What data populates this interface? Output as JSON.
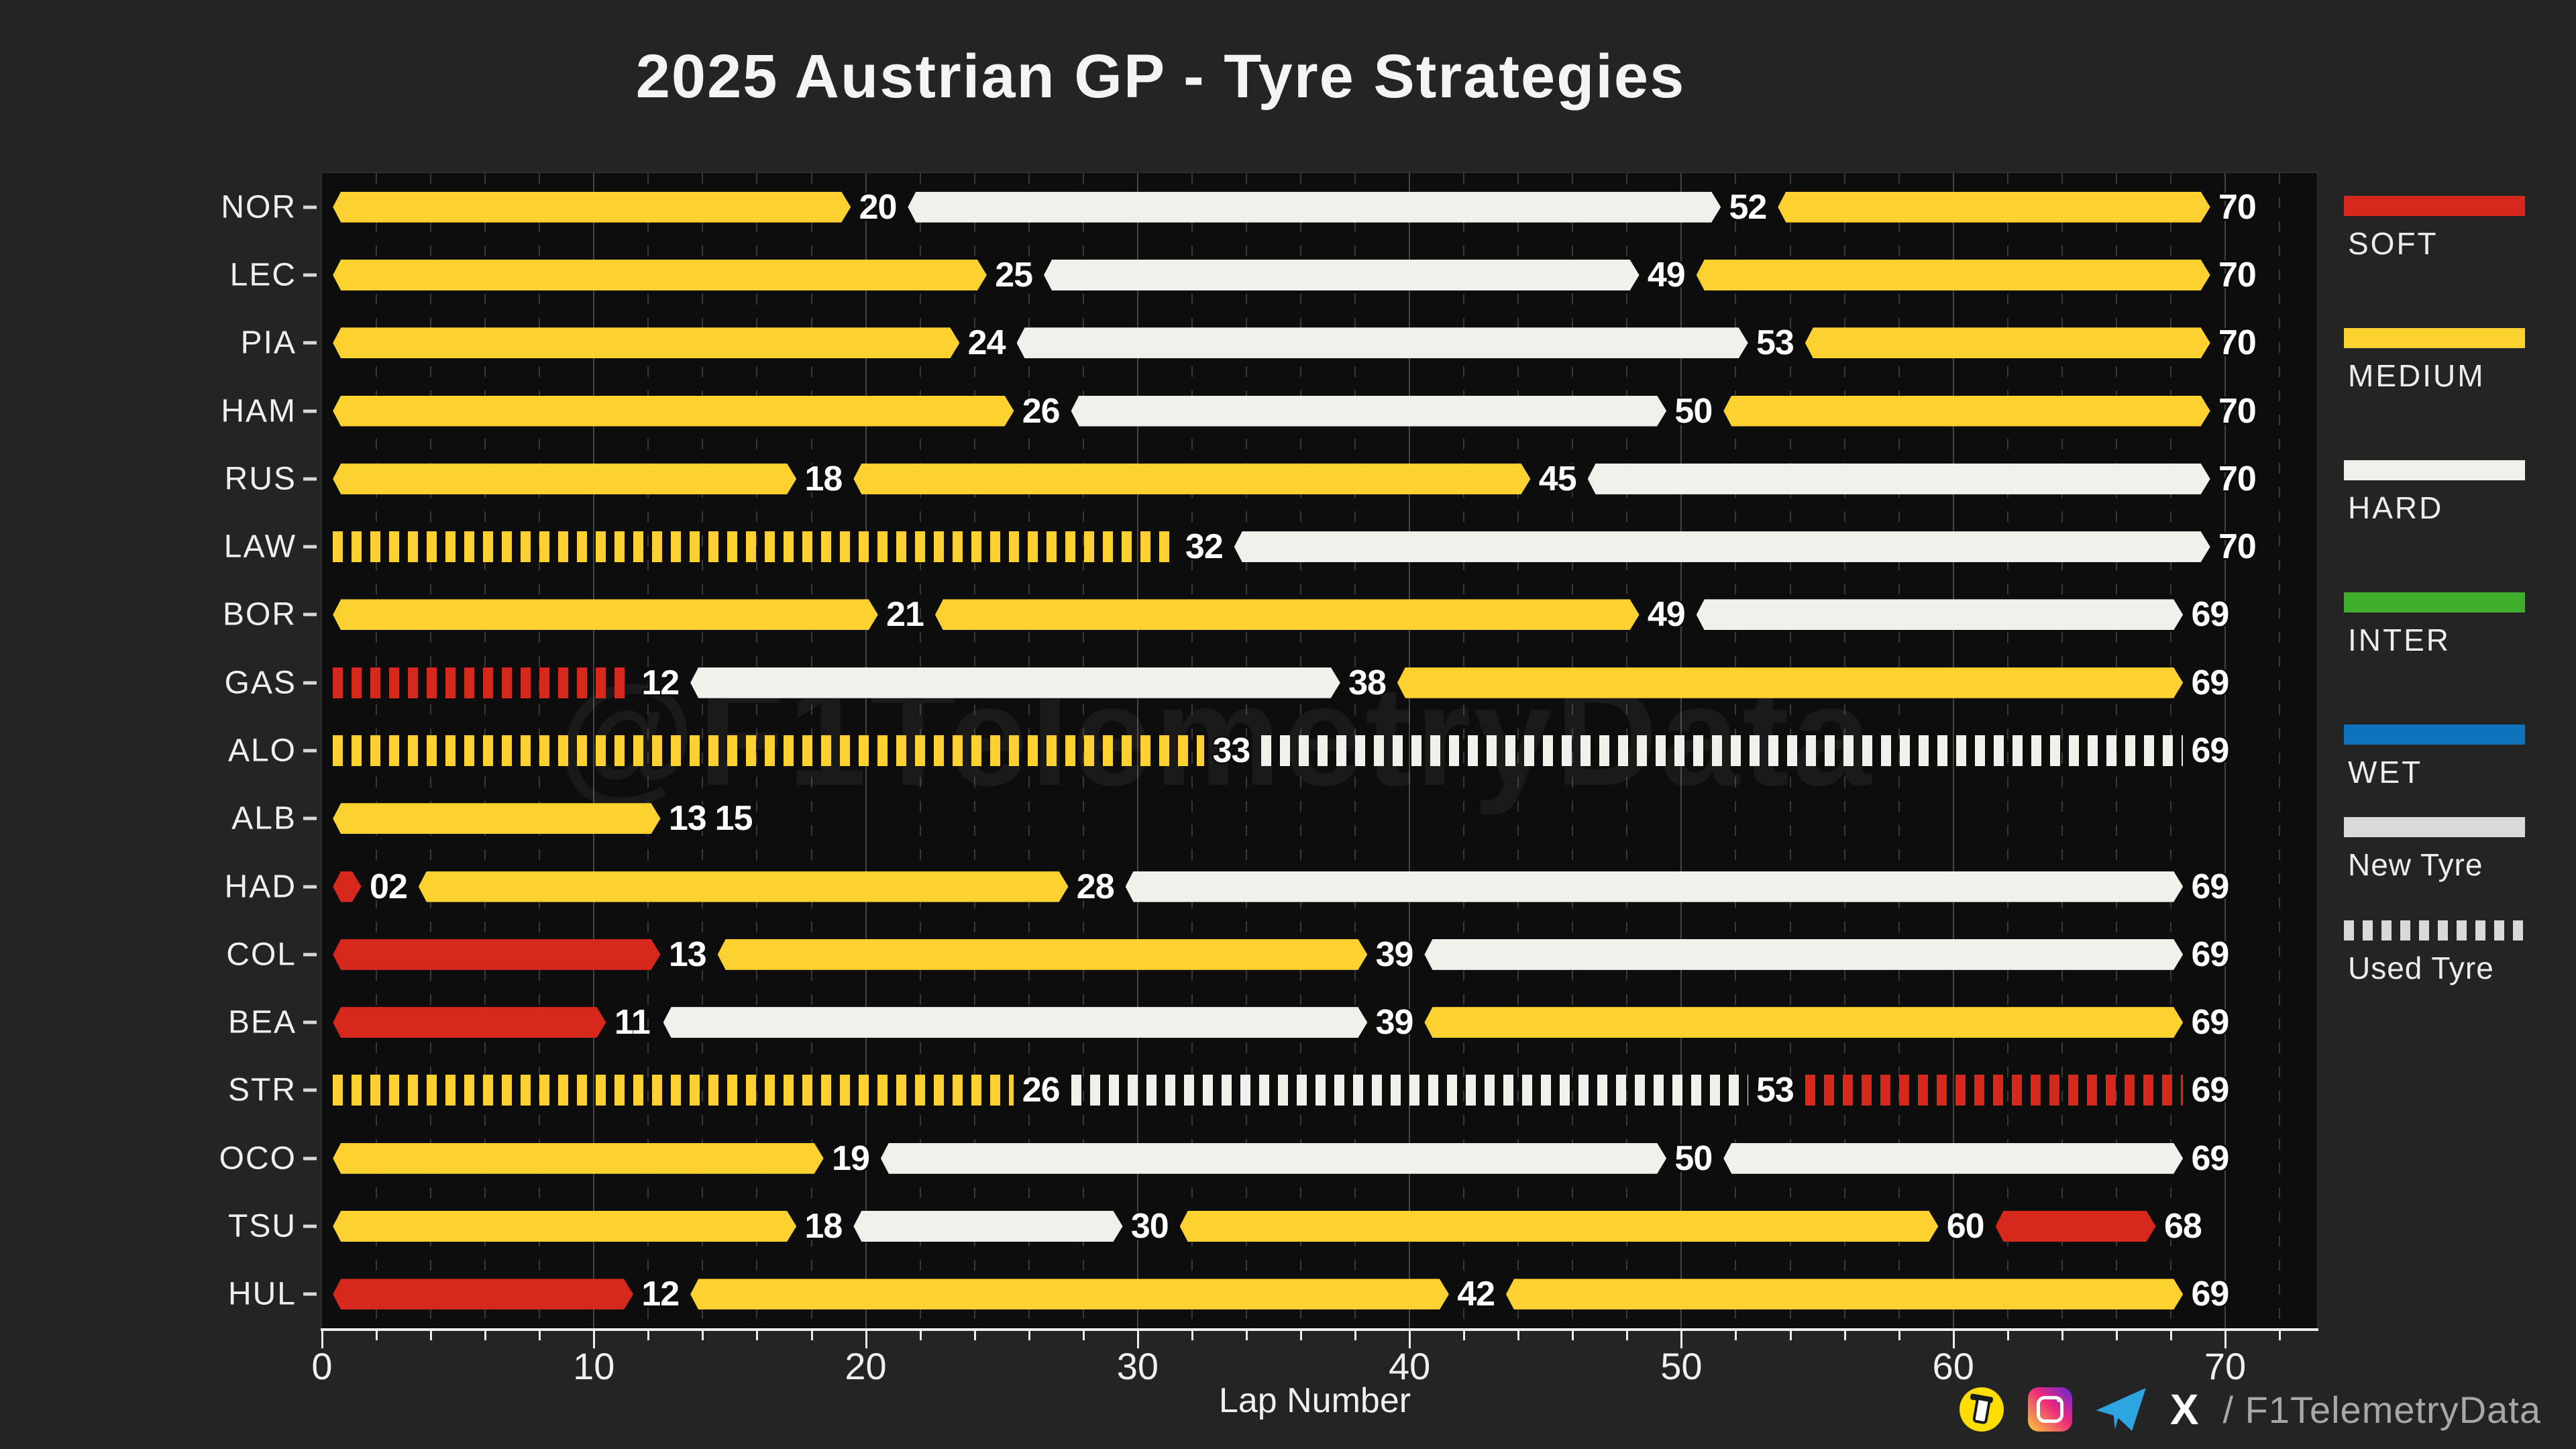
{
  "title": "2025 Austrian GP - Tyre Strategies",
  "watermark": "@F1TelemetryData",
  "footer": {
    "x_icon_glyph": "X",
    "handle": "/ F1TelemetryData",
    "icons": [
      "buymeacoffee-icon",
      "instagram-icon",
      "telegram-icon",
      "x-icon"
    ]
  },
  "colors": {
    "background": "#242424",
    "plot_background": "#0d0d0d",
    "text": "#f2f2f2",
    "muted_text": "#a8a8a8",
    "grid_major": "#454545",
    "grid_minor": "#383838",
    "axis": "#ededed",
    "new_tyre_swatch": "#d9d9d9"
  },
  "chart_data": {
    "type": "bar",
    "subtype": "horizontal-stacked-tyre-strategy-timeline",
    "title": "2025 Austrian GP - Tyre Strategies",
    "xlabel": "Lap Number",
    "xlim": [
      0,
      73.5
    ],
    "xticks": [
      0,
      10,
      20,
      30,
      40,
      50,
      60,
      70
    ],
    "minor_tick_step": 2,
    "grid": true,
    "compound_colors": {
      "SOFT": "#d7281e",
      "MEDIUM": "#fdd12f",
      "HARD": "#f1f1ec",
      "INTER": "#3fae2a",
      "WET": "#0f72bd"
    },
    "legend": {
      "position": "right",
      "compounds": [
        {
          "label": "SOFT",
          "color": "#d7281e"
        },
        {
          "label": "MEDIUM",
          "color": "#fdd12f"
        },
        {
          "label": "HARD",
          "color": "#f1f1ec"
        },
        {
          "label": "INTER",
          "color": "#3fae2a"
        },
        {
          "label": "WET",
          "color": "#0f72bd"
        }
      ],
      "usage": [
        {
          "label": "New Tyre",
          "pattern": "solid"
        },
        {
          "label": "Used Tyre",
          "pattern": "striped"
        }
      ]
    },
    "drivers": [
      {
        "code": "NOR",
        "stints": [
          {
            "end_lap": 20,
            "label": "20",
            "compound": "MEDIUM",
            "used": false
          },
          {
            "end_lap": 52,
            "label": "52",
            "compound": "HARD",
            "used": false
          },
          {
            "end_lap": 70,
            "label": "70",
            "compound": "MEDIUM",
            "used": false
          }
        ]
      },
      {
        "code": "LEC",
        "stints": [
          {
            "end_lap": 25,
            "label": "25",
            "compound": "MEDIUM",
            "used": false
          },
          {
            "end_lap": 49,
            "label": "49",
            "compound": "HARD",
            "used": false
          },
          {
            "end_lap": 70,
            "label": "70",
            "compound": "MEDIUM",
            "used": false
          }
        ]
      },
      {
        "code": "PIA",
        "stints": [
          {
            "end_lap": 24,
            "label": "24",
            "compound": "MEDIUM",
            "used": false
          },
          {
            "end_lap": 53,
            "label": "53",
            "compound": "HARD",
            "used": false
          },
          {
            "end_lap": 70,
            "label": "70",
            "compound": "MEDIUM",
            "used": false
          }
        ]
      },
      {
        "code": "HAM",
        "stints": [
          {
            "end_lap": 26,
            "label": "26",
            "compound": "MEDIUM",
            "used": false
          },
          {
            "end_lap": 50,
            "label": "50",
            "compound": "HARD",
            "used": false
          },
          {
            "end_lap": 70,
            "label": "70",
            "compound": "MEDIUM",
            "used": false
          }
        ]
      },
      {
        "code": "RUS",
        "stints": [
          {
            "end_lap": 18,
            "label": "18",
            "compound": "MEDIUM",
            "used": false
          },
          {
            "end_lap": 45,
            "label": "45",
            "compound": "MEDIUM",
            "used": false
          },
          {
            "end_lap": 70,
            "label": "70",
            "compound": "HARD",
            "used": false
          }
        ]
      },
      {
        "code": "LAW",
        "stints": [
          {
            "end_lap": 32,
            "label": "32",
            "compound": "MEDIUM",
            "used": true
          },
          {
            "end_lap": 70,
            "label": "70",
            "compound": "HARD",
            "used": false
          }
        ]
      },
      {
        "code": "BOR",
        "stints": [
          {
            "end_lap": 21,
            "label": "21",
            "compound": "MEDIUM",
            "used": false
          },
          {
            "end_lap": 49,
            "label": "49",
            "compound": "MEDIUM",
            "used": false
          },
          {
            "end_lap": 69,
            "label": "69",
            "compound": "HARD",
            "used": false
          }
        ]
      },
      {
        "code": "GAS",
        "stints": [
          {
            "end_lap": 12,
            "label": "12",
            "compound": "SOFT",
            "used": true
          },
          {
            "end_lap": 38,
            "label": "38",
            "compound": "HARD",
            "used": false
          },
          {
            "end_lap": 69,
            "label": "69",
            "compound": "MEDIUM",
            "used": false
          }
        ]
      },
      {
        "code": "ALO",
        "stints": [
          {
            "end_lap": 33,
            "label": "33",
            "compound": "MEDIUM",
            "used": true
          },
          {
            "end_lap": 69,
            "label": "69",
            "compound": "HARD",
            "used": true
          }
        ]
      },
      {
        "code": "ALB",
        "stints": [
          {
            "end_lap": 13,
            "label": "13",
            "compound": "MEDIUM",
            "used": false
          }
        ],
        "result_label": {
          "lap": 15,
          "text": "15"
        }
      },
      {
        "code": "HAD",
        "stints": [
          {
            "end_lap": 2,
            "label": "02",
            "compound": "SOFT",
            "used": false
          },
          {
            "end_lap": 28,
            "label": "28",
            "compound": "MEDIUM",
            "used": false
          },
          {
            "end_lap": 69,
            "label": "69",
            "compound": "HARD",
            "used": false
          }
        ]
      },
      {
        "code": "COL",
        "stints": [
          {
            "end_lap": 13,
            "label": "13",
            "compound": "SOFT",
            "used": false
          },
          {
            "end_lap": 39,
            "label": "39",
            "compound": "MEDIUM",
            "used": false
          },
          {
            "end_lap": 69,
            "label": "69",
            "compound": "HARD",
            "used": false
          }
        ]
      },
      {
        "code": "BEA",
        "stints": [
          {
            "end_lap": 11,
            "label": "11",
            "compound": "SOFT",
            "used": false
          },
          {
            "end_lap": 39,
            "label": "39",
            "compound": "HARD",
            "used": false
          },
          {
            "end_lap": 69,
            "label": "69",
            "compound": "MEDIUM",
            "used": false
          }
        ]
      },
      {
        "code": "STR",
        "stints": [
          {
            "end_lap": 26,
            "label": "26",
            "compound": "MEDIUM",
            "used": true
          },
          {
            "end_lap": 53,
            "label": "53",
            "compound": "HARD",
            "used": true
          },
          {
            "end_lap": 69,
            "label": "69",
            "compound": "SOFT",
            "used": true
          }
        ]
      },
      {
        "code": "OCO",
        "stints": [
          {
            "end_lap": 19,
            "label": "19",
            "compound": "MEDIUM",
            "used": false
          },
          {
            "end_lap": 50,
            "label": "50",
            "compound": "HARD",
            "used": false
          },
          {
            "end_lap": 69,
            "label": "69",
            "compound": "HARD",
            "used": false
          }
        ]
      },
      {
        "code": "TSU",
        "stints": [
          {
            "end_lap": 18,
            "label": "18",
            "compound": "MEDIUM",
            "used": false
          },
          {
            "end_lap": 30,
            "label": "30",
            "compound": "HARD",
            "used": false
          },
          {
            "end_lap": 60,
            "label": "60",
            "compound": "MEDIUM",
            "used": false
          },
          {
            "end_lap": 68,
            "label": "68",
            "compound": "SOFT",
            "used": false
          }
        ]
      },
      {
        "code": "HUL",
        "stints": [
          {
            "end_lap": 12,
            "label": "12",
            "compound": "SOFT",
            "used": false
          },
          {
            "end_lap": 42,
            "label": "42",
            "compound": "MEDIUM",
            "used": false
          },
          {
            "end_lap": 69,
            "label": "69",
            "compound": "MEDIUM",
            "used": false
          }
        ]
      }
    ]
  }
}
